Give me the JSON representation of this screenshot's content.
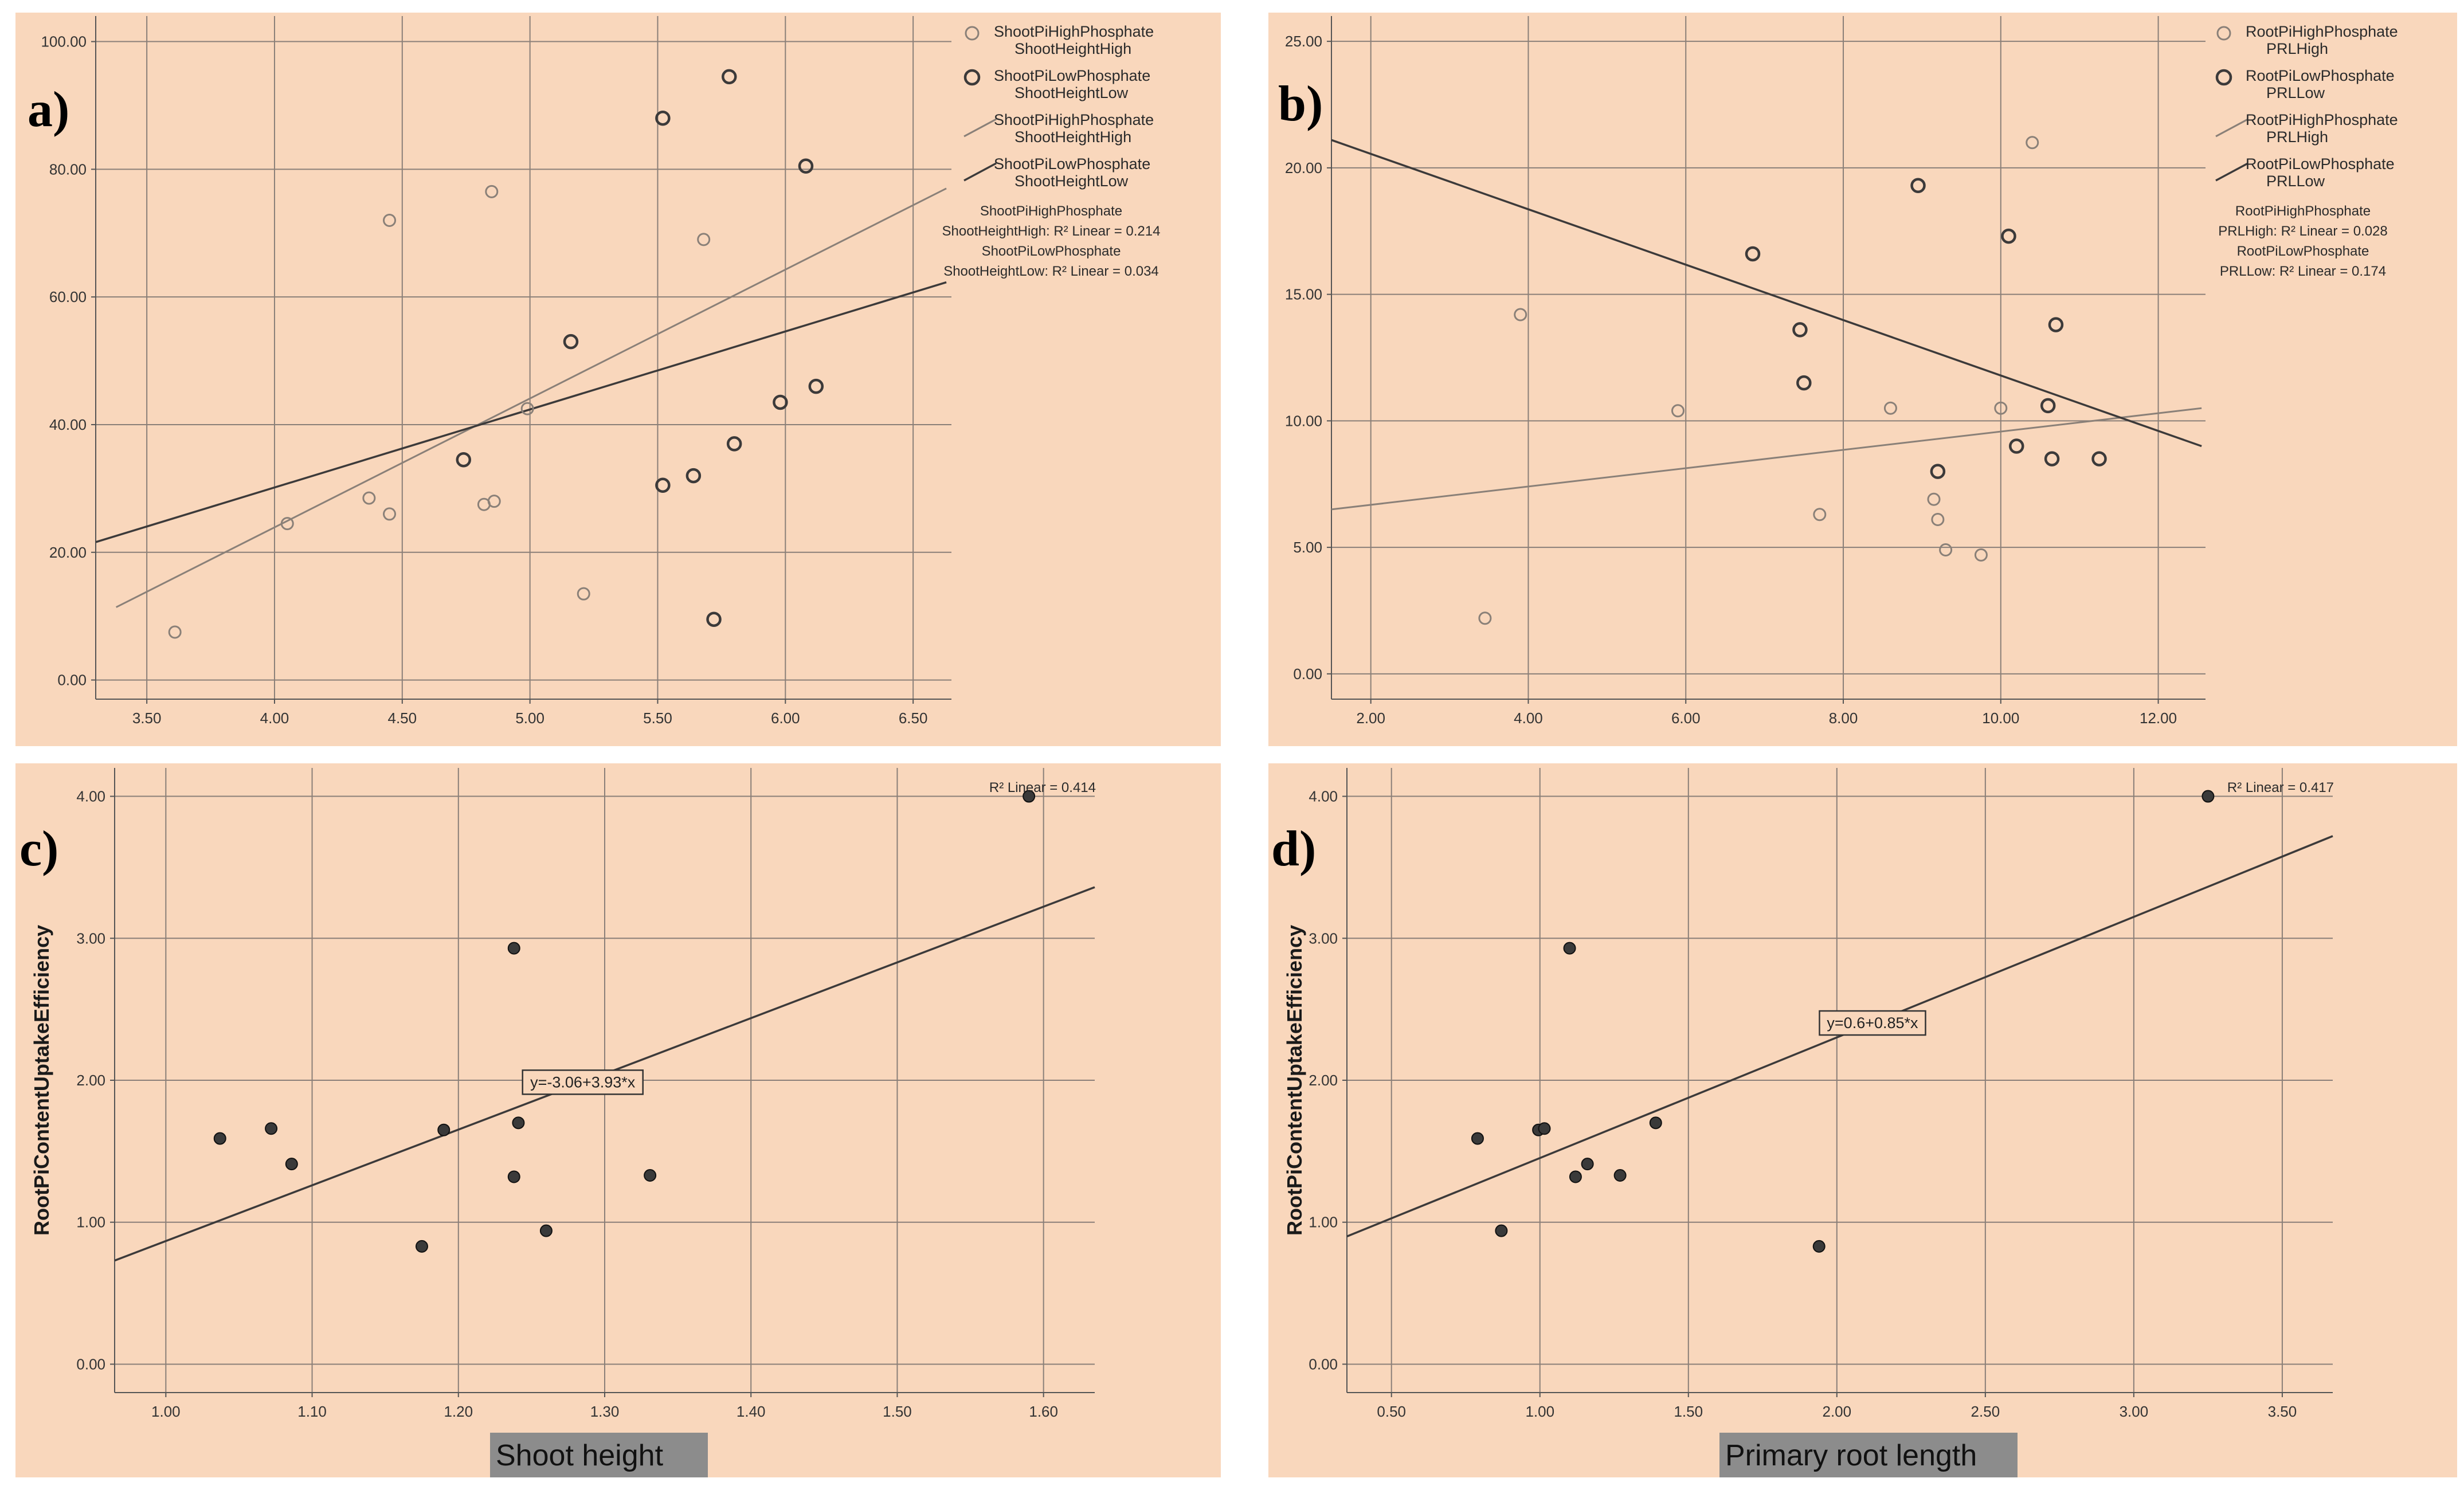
{
  "colors": {
    "background": "#f9d7bc",
    "grid": "#8a7f78",
    "high": "#8a8078",
    "low": "#3c3a3a",
    "point_fill": "#3a3a3a"
  },
  "chart_data": [
    {
      "id": "a",
      "panel_label": "a)",
      "type": "scatter",
      "xlim": [
        3.3,
        6.65
      ],
      "ylim": [
        -3,
        104
      ],
      "xticks": [
        3.5,
        4.0,
        4.5,
        5.0,
        5.5,
        6.0,
        6.5
      ],
      "xtick_labels": [
        "3.50",
        "4.00",
        "4.50",
        "5.00",
        "5.50",
        "6.00",
        "6.50"
      ],
      "yticks": [
        0,
        20,
        40,
        60,
        80,
        100
      ],
      "ytick_labels": [
        "0.00",
        "20.00",
        "40.00",
        "60.00",
        "80.00",
        "100.00"
      ],
      "series": [
        {
          "name": "ShootPiHighPhosphate ShootHeightHigh",
          "legend_lines": [
            "ShootPiHighPhosphate",
            "ShootHeightHigh"
          ],
          "style": "high",
          "points": [
            [
              3.61,
              7.5
            ],
            [
              4.05,
              24.5
            ],
            [
              4.37,
              28.5
            ],
            [
              4.45,
              72
            ],
            [
              4.45,
              26
            ],
            [
              4.82,
              27.5
            ],
            [
              4.85,
              76.5
            ],
            [
              4.86,
              28
            ],
            [
              4.99,
              42.5
            ],
            [
              5.21,
              13.5
            ],
            [
              5.68,
              69
            ]
          ]
        },
        {
          "name": "ShootPiLowPhosphate ShootHeightLow",
          "legend_lines": [
            "ShootPiLowPhosphate",
            "ShootHeightLow"
          ],
          "style": "low",
          "points": [
            [
              4.74,
              34.5
            ],
            [
              5.16,
              53
            ],
            [
              5.52,
              88
            ],
            [
              5.52,
              30.5
            ],
            [
              5.64,
              32
            ],
            [
              5.72,
              9.5
            ],
            [
              5.78,
              94.5
            ],
            [
              5.8,
              37
            ],
            [
              5.98,
              43.5
            ],
            [
              6.08,
              80.5
            ],
            [
              6.12,
              46
            ]
          ]
        }
      ],
      "fit_lines": [
        {
          "name": "ShootPiHighPhosphate ShootHeightHigh",
          "legend_lines": [
            "ShootPiHighPhosphate",
            "ShootHeightHigh"
          ],
          "style": "high",
          "x": [
            3.38,
            6.63
          ],
          "y": [
            11.4,
            77
          ]
        },
        {
          "name": "ShootPiLowPhosphate ShootHeightLow",
          "legend_lines": [
            "ShootPiLowPhosphate",
            "ShootHeightLow"
          ],
          "style": "low",
          "x": [
            3.3,
            6.63
          ],
          "y": [
            21.6,
            62.3
          ]
        }
      ],
      "r2_notes": [
        "ShootPiHighPhosphate",
        "ShootHeightHigh: R² Linear = 0.214",
        "ShootPiLowPhosphate",
        "ShootHeightLow: R² Linear = 0.034"
      ]
    },
    {
      "id": "b",
      "panel_label": "b)",
      "type": "scatter",
      "xlim": [
        1.5,
        12.6
      ],
      "ylim": [
        -1,
        26
      ],
      "xticks": [
        2,
        4,
        6,
        8,
        10,
        12
      ],
      "xtick_labels": [
        "2.00",
        "4.00",
        "6.00",
        "8.00",
        "10.00",
        "12.00"
      ],
      "yticks": [
        0,
        5,
        10,
        15,
        20,
        25
      ],
      "ytick_labels": [
        "0.00",
        "5.00",
        "10.00",
        "15.00",
        "20.00",
        "25.00"
      ],
      "series": [
        {
          "name": "RootPiHighPhosphate PRLHigh",
          "legend_lines": [
            "RootPiHighPhosphate",
            "PRLHigh"
          ],
          "style": "high",
          "points": [
            [
              3.45,
              2.2
            ],
            [
              3.9,
              14.2
            ],
            [
              5.9,
              10.4
            ],
            [
              7.7,
              6.3
            ],
            [
              8.6,
              10.5
            ],
            [
              9.15,
              6.9
            ],
            [
              9.2,
              6.1
            ],
            [
              9.3,
              4.9
            ],
            [
              9.75,
              4.7
            ],
            [
              10.0,
              10.5
            ],
            [
              10.4,
              21
            ]
          ]
        },
        {
          "name": "RootPiLowPhosphate PRLLow",
          "legend_lines": [
            "RootPiLowPhosphate",
            "PRLLow"
          ],
          "style": "low",
          "points": [
            [
              6.85,
              16.6
            ],
            [
              7.45,
              13.6
            ],
            [
              7.5,
              11.5
            ],
            [
              8.95,
              19.3
            ],
            [
              9.2,
              8
            ],
            [
              10.1,
              17.3
            ],
            [
              10.2,
              9
            ],
            [
              10.6,
              10.6
            ],
            [
              10.65,
              8.5
            ],
            [
              10.7,
              13.8
            ],
            [
              11.25,
              8.5
            ]
          ]
        }
      ],
      "fit_lines": [
        {
          "name": "RootPiHighPhosphate PRLHigh",
          "legend_lines": [
            "RootPiHighPhosphate",
            "PRLHigh"
          ],
          "style": "high",
          "x": [
            1.5,
            12.55
          ],
          "y": [
            6.5,
            10.5
          ]
        },
        {
          "name": "RootPiLowPhosphate PRLLow",
          "legend_lines": [
            "RootPiLowPhosphate",
            "PRLLow"
          ],
          "style": "low",
          "x": [
            1.5,
            12.55
          ],
          "y": [
            21.1,
            9
          ]
        }
      ],
      "r2_notes": [
        "RootPiHighPhosphate",
        "PRLHigh: R² Linear = 0.028",
        "RootPiLowPhosphate",
        "PRLLow: R² Linear = 0.174"
      ]
    },
    {
      "id": "c",
      "panel_label": "c)",
      "type": "scatter",
      "xlim": [
        0.965,
        1.635
      ],
      "ylim": [
        -0.2,
        4.2
      ],
      "xticks": [
        1.0,
        1.1,
        1.2,
        1.3,
        1.4,
        1.5,
        1.6
      ],
      "xtick_labels": [
        "1.00",
        "1.10",
        "1.20",
        "1.30",
        "1.40",
        "1.50",
        "1.60"
      ],
      "yticks": [
        0,
        1,
        2,
        3,
        4
      ],
      "ytick_labels": [
        "0.00",
        "1.00",
        "2.00",
        "3.00",
        "4.00"
      ],
      "ylabel": "RootPiContentUptakeEfficiency",
      "xlabel": "Shoot height",
      "series": [
        {
          "name": "points",
          "style": "filled",
          "points": [
            [
              1.037,
              1.59
            ],
            [
              1.072,
              1.66
            ],
            [
              1.086,
              1.41
            ],
            [
              1.175,
              0.83
            ],
            [
              1.19,
              1.65
            ],
            [
              1.238,
              2.93
            ],
            [
              1.238,
              1.32
            ],
            [
              1.241,
              1.7
            ],
            [
              1.26,
              0.94
            ],
            [
              1.331,
              1.33
            ],
            [
              1.59,
              4.0
            ]
          ]
        }
      ],
      "fit_lines": [
        {
          "x": [
            0.965,
            1.635
          ],
          "y": [
            0.73,
            3.36
          ],
          "style": "low"
        }
      ],
      "equation": "y=-3.06+3.93*x",
      "r2": "R² Linear = 0.414"
    },
    {
      "id": "d",
      "panel_label": "d)",
      "type": "scatter",
      "xlim": [
        0.35,
        3.67
      ],
      "ylim": [
        -0.2,
        4.2
      ],
      "xticks": [
        0.5,
        1.0,
        1.5,
        2.0,
        2.5,
        3.0,
        3.5
      ],
      "xtick_labels": [
        "0.50",
        "1.00",
        "1.50",
        "2.00",
        "2.50",
        "3.00",
        "3.50"
      ],
      "yticks": [
        0,
        1,
        2,
        3,
        4
      ],
      "ytick_labels": [
        "0.00",
        "1.00",
        "2.00",
        "3.00",
        "4.00"
      ],
      "ylabel": "RootPiContentUptakeEfficiency",
      "xlabel": "Primary root length",
      "series": [
        {
          "name": "points",
          "style": "filled",
          "points": [
            [
              0.79,
              1.59
            ],
            [
              0.87,
              0.94
            ],
            [
              0.995,
              1.65
            ],
            [
              1.015,
              1.66
            ],
            [
              1.1,
              2.93
            ],
            [
              1.12,
              1.32
            ],
            [
              1.16,
              1.41
            ],
            [
              1.27,
              1.33
            ],
            [
              1.39,
              1.7
            ],
            [
              1.94,
              0.83
            ],
            [
              3.25,
              4.0
            ]
          ]
        }
      ],
      "fit_lines": [
        {
          "x": [
            0.35,
            3.67
          ],
          "y": [
            0.9,
            3.72
          ],
          "style": "low"
        }
      ],
      "equation": "y=0.6+0.85*x",
      "r2": "R² Linear = 0.417"
    }
  ]
}
